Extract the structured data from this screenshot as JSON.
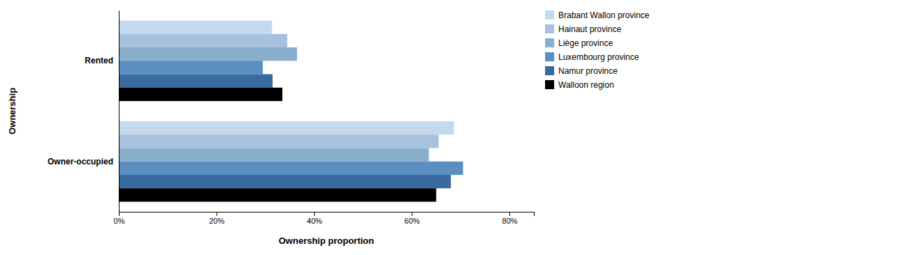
{
  "chart_data": {
    "type": "bar",
    "orientation": "horizontal",
    "categories": [
      "Rented",
      "Owner-occupied"
    ],
    "series": [
      {
        "name": "Brabant Wallon province",
        "color": "#c5d9ec",
        "values": [
          31.37,
          68.63
        ]
      },
      {
        "name": "Hainaut province",
        "color": "#a8c1df",
        "values": [
          34.5,
          65.5
        ]
      },
      {
        "name": "Liège province",
        "color": "#8aaece",
        "values": [
          36.5,
          63.5
        ]
      },
      {
        "name": "Luxembourg province",
        "color": "#5b8fbf",
        "values": [
          29.5,
          70.5
        ]
      },
      {
        "name": "Namur province",
        "color": "#3a6b9e",
        "values": [
          31.5,
          68.0
        ]
      },
      {
        "name": "Walloon region",
        "color": "#000000",
        "values": [
          33.5,
          65.0
        ]
      }
    ],
    "x_label": "Ownership proportion",
    "y_label": "Ownership",
    "xlim": [
      0,
      85
    ],
    "xticks": [
      {
        "value": 0,
        "label": "0%"
      },
      {
        "value": 20,
        "label": "20%"
      },
      {
        "value": 40,
        "label": "40%"
      },
      {
        "value": 60,
        "label": "60%"
      },
      {
        "value": 80,
        "label": "80%"
      }
    ],
    "legend": "upper right"
  }
}
